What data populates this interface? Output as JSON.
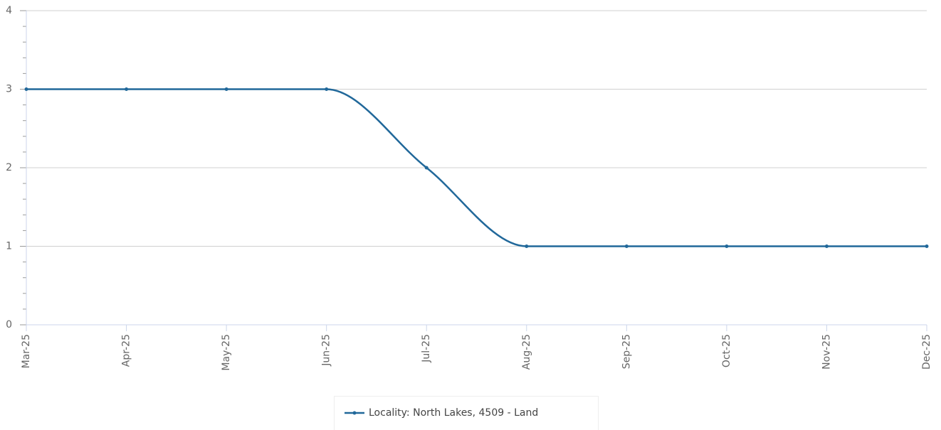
{
  "chart_data": {
    "type": "line",
    "categories": [
      "Mar-25",
      "Apr-25",
      "May-25",
      "Jun-25",
      "Jul-25",
      "Aug-25",
      "Sep-25",
      "Oct-25",
      "Nov-25",
      "Dec-25"
    ],
    "series": [
      {
        "name": "Locality: North Lakes, 4509 - Land",
        "color": "#21689a",
        "values": [
          3,
          3,
          3,
          3,
          2,
          1,
          1,
          1,
          1,
          1
        ]
      }
    ],
    "ylim": [
      0,
      4
    ],
    "yticks": [
      0,
      1,
      2,
      3,
      4
    ],
    "grid": true,
    "legend": "bottom"
  }
}
